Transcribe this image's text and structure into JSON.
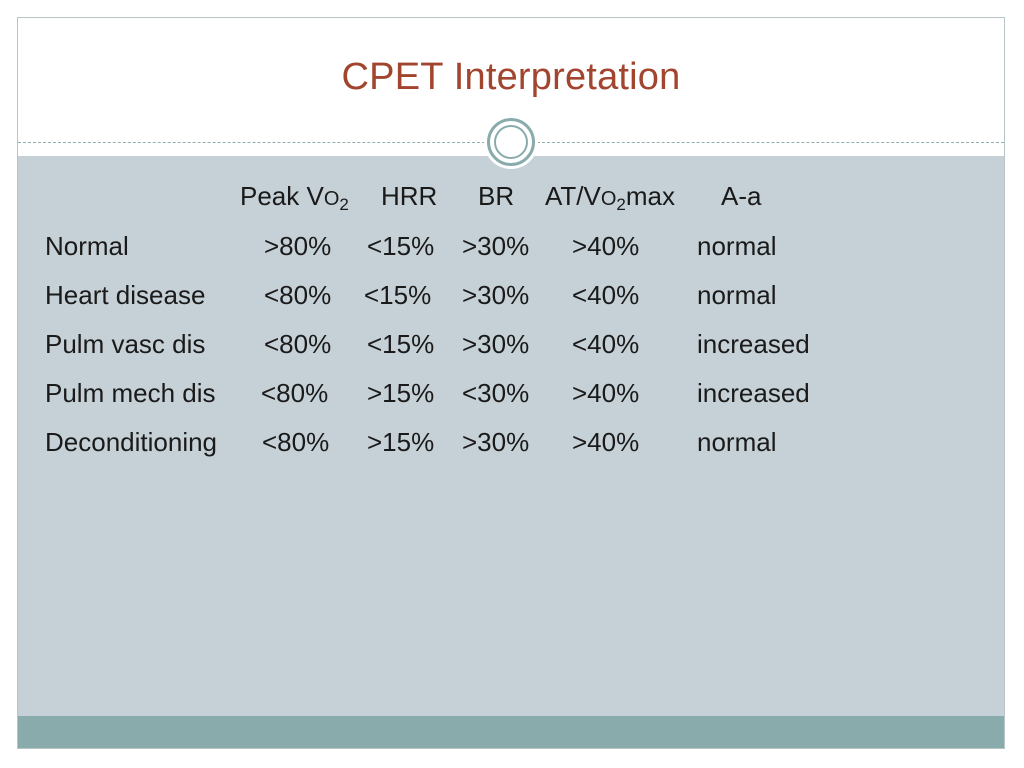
{
  "slide": {
    "title": "CPET Interpretation",
    "header": {
      "peak_vo2": {
        "prefix": "Peak V",
        "o": "O",
        "sub": "2"
      },
      "hrr": "HRR",
      "br": "BR",
      "at_vo2max": {
        "prefix": "AT/V",
        "o": "O",
        "sub": "2",
        "suffix": "max"
      },
      "a_a": "A-a"
    },
    "rows": [
      {
        "label": "Normal",
        "peak": ">80%",
        "hrr": "<15%",
        "br": ">30%",
        "at": ">40%",
        "aa": "normal"
      },
      {
        "label": "Heart disease",
        "peak": "<80%",
        "hrr": "<15%",
        "br": ">30%",
        "at": "<40%",
        "aa": "normal"
      },
      {
        "label": "Pulm vasc dis",
        "peak": "<80%",
        "hrr": "<15%",
        "br": ">30%",
        "at": "<40%",
        "aa": "increased"
      },
      {
        "label": "Pulm mech dis",
        "peak": "<80%",
        "hrr": ">15%",
        "br": "<30%",
        "at": ">40%",
        "aa": "increased"
      },
      {
        "label": "Deconditioning",
        "peak": "<80%",
        "hrr": ">15%",
        "br": ">30%",
        "at": ">40%",
        "aa": "normal"
      }
    ]
  },
  "colors": {
    "title": "#a2452e",
    "content_background": "#c6d1d7",
    "footer_bar": "#8aabab",
    "accent_ring": "#8aabab",
    "text": "#1a1a1a"
  }
}
